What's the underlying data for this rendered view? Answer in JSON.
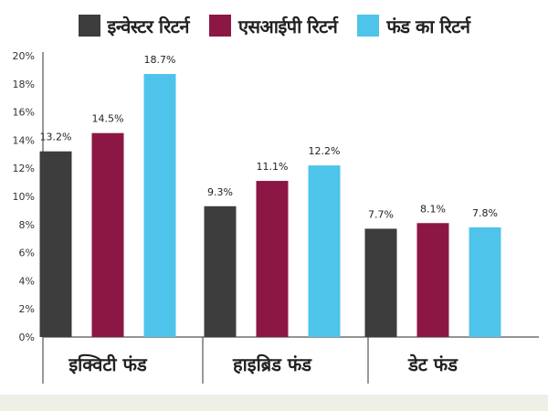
{
  "chart_data": {
    "type": "bar",
    "categories": [
      "इक्विटी फंड",
      "हाइब्रिड फंड",
      "डेट फंड"
    ],
    "series": [
      {
        "name": "इन्वेस्टर रिटर्न",
        "color": "#3d3d3d",
        "values": [
          13.2,
          9.3,
          7.7
        ],
        "labels": [
          "13.2%",
          "9.3%",
          "7.7%"
        ]
      },
      {
        "name": "एसआईपी रिटर्न",
        "color": "#8c1744",
        "values": [
          14.5,
          11.1,
          8.1
        ],
        "labels": [
          "14.5%",
          "11.1%",
          "8.1%"
        ]
      },
      {
        "name": "फंड का रिटर्न",
        "color": "#4fc4ea",
        "values": [
          18.7,
          12.2,
          7.8
        ],
        "labels": [
          "18.7%",
          "12.2%",
          "7.8%"
        ]
      }
    ],
    "y_ticks": [
      "0%",
      "2%",
      "4%",
      "6%",
      "8%",
      "10%",
      "12%",
      "14%",
      "16%",
      "18%",
      "20%"
    ],
    "ylim": [
      0,
      20
    ],
    "grid": false,
    "legend_position": "top"
  }
}
